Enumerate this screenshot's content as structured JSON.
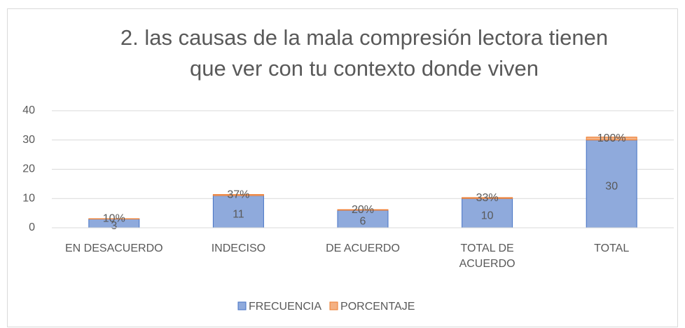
{
  "chart_data": {
    "type": "stacked_bar",
    "title": "2. las causas de la mala compresión lectora tienen que ver con tu contexto donde viven",
    "categories": [
      "EN DESACUERDO",
      "INDECISO",
      "DE ACUERDO",
      "TOTAL DE ACUERDO",
      "TOTAL"
    ],
    "series": [
      {
        "name": "FRECUENCIA",
        "color": "#8faadc",
        "values": [
          3,
          11,
          6,
          10,
          30
        ]
      },
      {
        "name": "PORCENTAJE",
        "color": "#f4b183",
        "values": [
          0.1,
          0.37,
          0.2,
          0.33,
          1
        ],
        "value_labels": [
          "10%",
          "37%",
          "20%",
          "33%",
          "100%"
        ]
      }
    ],
    "ylim": [
      0,
      40
    ],
    "yticks": [
      0,
      10,
      20,
      30,
      40
    ],
    "grid": true,
    "legend": "bottom"
  }
}
